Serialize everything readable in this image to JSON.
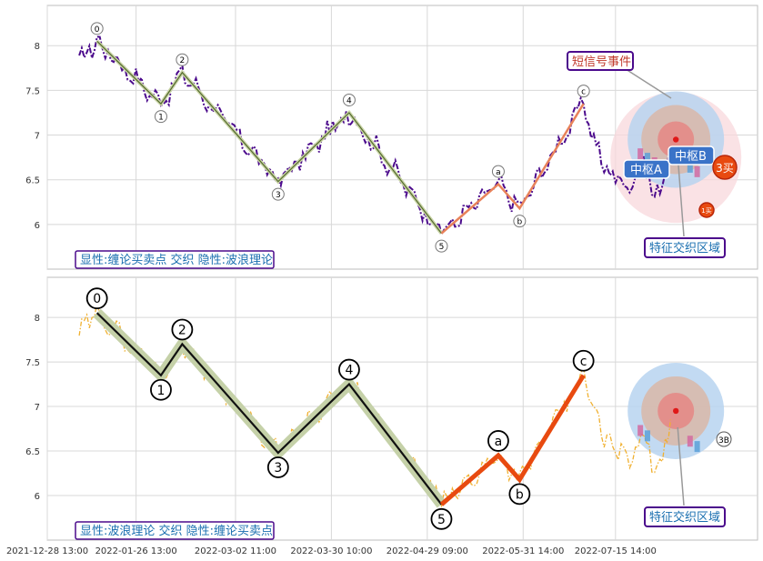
{
  "chart_data": [
    {
      "type": "line",
      "panel": "top",
      "ylim": [
        5.5,
        8.45
      ],
      "yticks": [
        6.0,
        6.5,
        7.0,
        7.5,
        8.0
      ],
      "grid": true,
      "price_color": "#4b0a8c",
      "price_style": "dash-dot",
      "wave_colors": {
        "impulse": "#556b2f",
        "correction": "#e8825a"
      },
      "waves": [
        {
          "label": "0",
          "x": 0.07,
          "y": 8.05
        },
        {
          "label": "1",
          "x": 0.16,
          "y": 7.35
        },
        {
          "label": "2",
          "x": 0.19,
          "y": 7.7
        },
        {
          "label": "3",
          "x": 0.325,
          "y": 6.48
        },
        {
          "label": "4",
          "x": 0.425,
          "y": 7.25
        },
        {
          "label": "5",
          "x": 0.555,
          "y": 5.9
        },
        {
          "label": "a",
          "x": 0.635,
          "y": 6.45
        },
        {
          "label": "b",
          "x": 0.665,
          "y": 6.18
        },
        {
          "label": "c",
          "x": 0.755,
          "y": 7.35
        }
      ],
      "labels": {
        "legend": "显性:缠论买卖点 交织 隐性:波浪理论",
        "signal": "短信号事件",
        "zone": "特征交织区域",
        "pivot_a": "中枢A",
        "pivot_b": "中枢B",
        "buy3": "3买",
        "buy1": "1买"
      }
    },
    {
      "type": "line",
      "panel": "bottom",
      "ylim": [
        5.5,
        8.45
      ],
      "yticks": [
        6.0,
        6.5,
        7.0,
        7.5,
        8.0
      ],
      "grid": true,
      "price_color": "#f0b030",
      "price_style": "dash-dot",
      "wave_colors": {
        "impulse": "#111111",
        "impulse_halo": "#c5d1a8",
        "correction": "#e84a10"
      },
      "waves": [
        {
          "label": "0",
          "x": 0.07,
          "y": 8.05
        },
        {
          "label": "1",
          "x": 0.16,
          "y": 7.35
        },
        {
          "label": "2",
          "x": 0.19,
          "y": 7.7
        },
        {
          "label": "3",
          "x": 0.325,
          "y": 6.48
        },
        {
          "label": "4",
          "x": 0.425,
          "y": 7.25
        },
        {
          "label": "5",
          "x": 0.555,
          "y": 5.9
        },
        {
          "label": "a",
          "x": 0.635,
          "y": 6.45
        },
        {
          "label": "b",
          "x": 0.665,
          "y": 6.18
        },
        {
          "label": "c",
          "x": 0.755,
          "y": 7.35
        }
      ],
      "labels": {
        "legend": "显性:波浪理论 交织 隐性:缠论买卖点",
        "zone": "特征交织区域",
        "buy3": "3B"
      }
    }
  ],
  "x_axis": {
    "ticks": [
      {
        "label": "2021-12-28 13:00",
        "x": 0.0
      },
      {
        "label": "2022-01-26 13:00",
        "x": 0.125
      },
      {
        "label": "2022-03-02 11:00",
        "x": 0.265
      },
      {
        "label": "2022-03-30 10:00",
        "x": 0.4
      },
      {
        "label": "2022-04-29 09:00",
        "x": 0.535
      },
      {
        "label": "2022-05-31 14:00",
        "x": 0.67
      },
      {
        "label": "2022-07-15 14:00",
        "x": 0.8
      }
    ]
  }
}
